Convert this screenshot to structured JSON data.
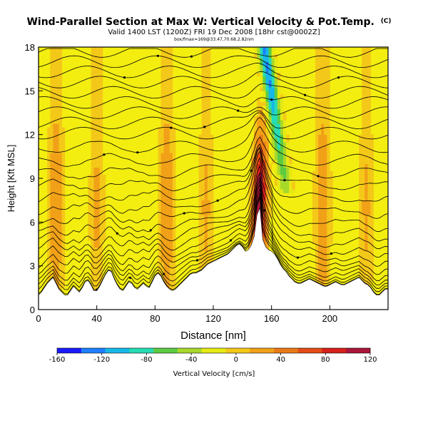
{
  "chart_data": {
    "type": "heatmap",
    "title": "Wind-Parallel Section at Max W: Vertical Velocity & Pot.Temp.",
    "title_mark": "(C)",
    "subtitle": "Valid 1400 LST (1200Z) FRI 19 Dec 2008 [18hr cst@0002Z]",
    "subtitle2": "box/fmax=169@33.47,70.68.2.82nm",
    "xlabel": "Distance [nm]",
    "ylabel": "Height [Kft MSL]",
    "xlim": [
      0,
      240
    ],
    "ylim": [
      0,
      18
    ],
    "x_ticks": [
      0,
      40,
      80,
      120,
      160,
      200
    ],
    "y_ticks": [
      0,
      3,
      6,
      9,
      12,
      15,
      18
    ],
    "colorbar": {
      "label": "Vertical Velocity [cm/s]",
      "range": [
        -160,
        120
      ],
      "ticks": [
        -160,
        -120,
        -80,
        -40,
        0,
        40,
        80,
        120
      ],
      "colors": [
        "#1a1aff",
        "#1e7fff",
        "#16b8e8",
        "#26dcb4",
        "#5ccb42",
        "#a8d82a",
        "#e6ea14",
        "#f4c818",
        "#f1a118",
        "#e97a16",
        "#e44b16",
        "#d6201a",
        "#a8163a"
      ]
    },
    "terrain": {
      "x": [
        0,
        2,
        4,
        6,
        8,
        10,
        12,
        14,
        16,
        18,
        20,
        22,
        24,
        26,
        28,
        30,
        32,
        34,
        36,
        38,
        40,
        42,
        44,
        46,
        48,
        50,
        52,
        54,
        56,
        58,
        60,
        62,
        64,
        66,
        68,
        70,
        72,
        74,
        76,
        78,
        80,
        82,
        84,
        86,
        88,
        90,
        92,
        94,
        96,
        98,
        100,
        102,
        104,
        106,
        108,
        110,
        112,
        114,
        116,
        118,
        120,
        122,
        124,
        126,
        128,
        130,
        132,
        134,
        136,
        138,
        140,
        142,
        144,
        146,
        148,
        150,
        152,
        154,
        156,
        158,
        160,
        162,
        164,
        166,
        168,
        170,
        172,
        174,
        176,
        178,
        180,
        182,
        184,
        186,
        188,
        190,
        192,
        194,
        196,
        198,
        200,
        202,
        204,
        206,
        208,
        210,
        212,
        214,
        216,
        218,
        220,
        222,
        224,
        226,
        228,
        230,
        232,
        234,
        236,
        238,
        240
      ],
      "height_kft": [
        1.0,
        1.2,
        1.5,
        1.8,
        2.0,
        2.2,
        1.8,
        1.4,
        1.2,
        1.0,
        1.0,
        1.3,
        1.6,
        1.4,
        1.2,
        1.5,
        1.9,
        2.0,
        1.7,
        1.3,
        1.3,
        1.6,
        2.0,
        2.4,
        2.7,
        2.6,
        2.1,
        1.7,
        1.4,
        1.3,
        1.6,
        1.9,
        1.8,
        1.5,
        1.4,
        1.6,
        1.8,
        1.6,
        1.5,
        1.9,
        2.3,
        2.5,
        2.3,
        1.9,
        1.6,
        1.4,
        1.3,
        1.4,
        1.6,
        1.8,
        2.0,
        2.2,
        2.4,
        2.5,
        2.5,
        2.6,
        2.7,
        2.9,
        3.1,
        3.2,
        3.3,
        3.4,
        3.5,
        3.6,
        3.7,
        3.8,
        4.0,
        4.2,
        4.4,
        4.5,
        4.3,
        4.0,
        4.1,
        4.4,
        5.0,
        6.5,
        7.0,
        4.8,
        4.3,
        4.1,
        4.0,
        3.8,
        3.5,
        3.1,
        2.8,
        2.6,
        2.3,
        2.1,
        1.9,
        1.8,
        1.8,
        1.9,
        2.0,
        2.1,
        2.0,
        1.9,
        1.8,
        1.7,
        1.6,
        1.6,
        1.7,
        1.8,
        1.9,
        1.8,
        1.7,
        1.7,
        1.8,
        1.9,
        2.0,
        2.1,
        2.2,
        2.0,
        1.8,
        1.7,
        1.5,
        1.2,
        1.0,
        1.0,
        1.2,
        1.4,
        1.4
      ]
    },
    "vertical_velocity_features": [
      {
        "name": "updraft core",
        "x_center": 152,
        "x_halfwidth": 3,
        "z_range": [
          4.0,
          17.5
        ],
        "peak_cm_s": 120
      },
      {
        "name": "downdraft plume",
        "x_center": 162,
        "x_halfwidth": 3,
        "z_range": [
          8.0,
          18.0
        ],
        "peak_cm_s": -120,
        "tilt": "leans left with height"
      },
      {
        "name": "weak ascent patches",
        "x_values": [
          12,
          40,
          88,
          115,
          195,
          225
        ],
        "z_range": [
          1.0,
          13.0
        ],
        "peak_cm_s": 20
      },
      {
        "name": "background",
        "value_cm_s": 0
      }
    ],
    "potential_temperature_isolines": "Contours of potential temperature rising from the terrain, dense and packed near the surface on the lee slope (x 160-240 nm), and strongly deflected upward near the updraft at x 150-160 nm; labels are unreadable dots along each contour."
  }
}
